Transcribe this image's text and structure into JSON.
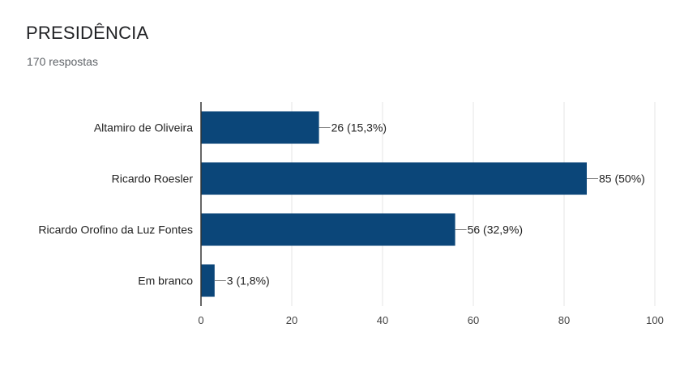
{
  "header": {
    "title": "PRESIDÊNCIA",
    "subtitle": "170 respostas"
  },
  "colors": {
    "bar": "#0b4679",
    "grid": "#e6e6e6",
    "axis": "#333333",
    "leader": "#888888"
  },
  "chart_data": {
    "type": "bar",
    "orientation": "horizontal",
    "categories": [
      "Altamiro de Oliveira",
      "Ricardo Roesler",
      "Ricardo Orofino da Luz Fontes",
      "Em branco"
    ],
    "values": [
      26,
      85,
      56,
      3
    ],
    "data_labels": [
      "26 (15,3%)",
      "85 (50%)",
      "56 (32,9%)",
      "3 (1,8%)"
    ],
    "xlim": [
      0,
      100
    ],
    "xticks": [
      0,
      20,
      40,
      60,
      80,
      100
    ],
    "grid": true,
    "legend": "none"
  }
}
